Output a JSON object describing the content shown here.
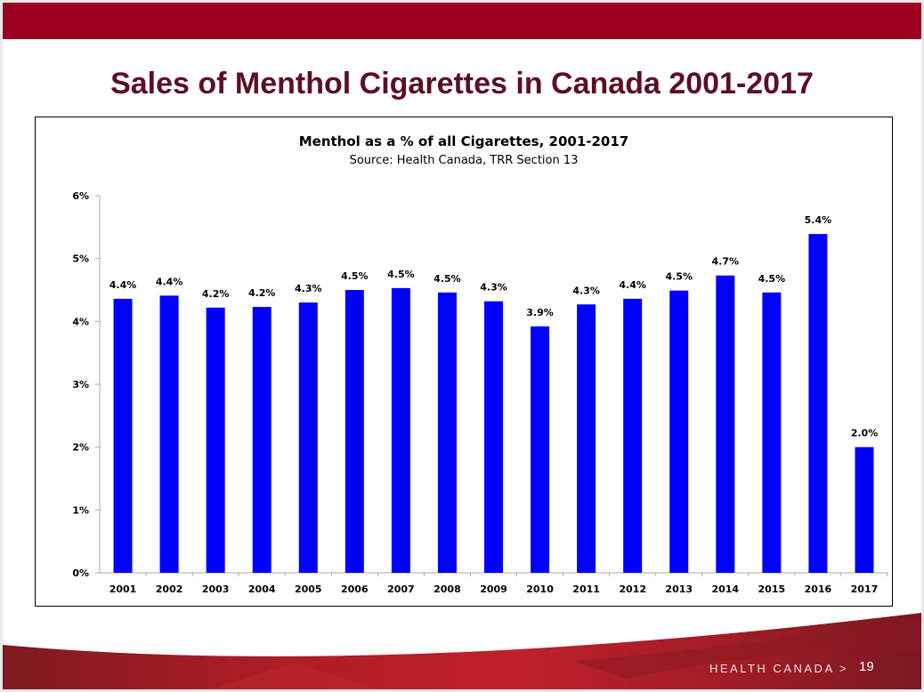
{
  "slide": {
    "title": "Sales of Menthol Cigarettes in Canada 2001-2017",
    "footer": "HEALTH CANADA >",
    "page_number": "19",
    "colors": {
      "top_bar": "#9b0020",
      "title": "#5c1022",
      "footer_red": "#b01e28"
    }
  },
  "chart_data": {
    "type": "bar",
    "title": "Menthol as a % of all Cigarettes, 2001-2017",
    "subtitle": "Source: Health Canada, TRR Section 13",
    "xlabel": "",
    "ylabel": "",
    "ylim": [
      0,
      6
    ],
    "yticks": [
      "0%",
      "1%",
      "2%",
      "3%",
      "4%",
      "5%",
      "6%"
    ],
    "grid": false,
    "bar_color": "#0000ff",
    "categories": [
      "2001",
      "2002",
      "2003",
      "2004",
      "2005",
      "2006",
      "2007",
      "2008",
      "2009",
      "2010",
      "2011",
      "2012",
      "2013",
      "2014",
      "2015",
      "2016",
      "2017"
    ],
    "values": [
      4.36,
      4.41,
      4.22,
      4.23,
      4.3,
      4.5,
      4.53,
      4.46,
      4.32,
      3.92,
      4.27,
      4.36,
      4.49,
      4.73,
      4.46,
      5.39,
      2.0
    ],
    "data_labels": [
      "4.4%",
      "4.4%",
      "4.2%",
      "4.2%",
      "4.3%",
      "4.5%",
      "4.5%",
      "4.5%",
      "4.3%",
      "3.9%",
      "4.3%",
      "4.4%",
      "4.5%",
      "4.7%",
      "4.5%",
      "5.4%",
      "2.0%"
    ]
  }
}
